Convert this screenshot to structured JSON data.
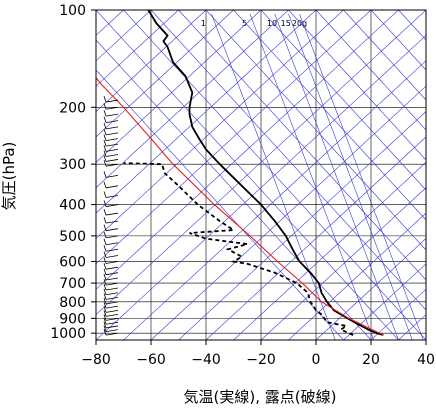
{
  "chart_data": {
    "type": "line",
    "title": "",
    "xlabel": "気温(実線), 露点(破線)",
    "ylabel": "気圧(hPa)",
    "x_axis": {
      "range": [
        -80,
        40
      ],
      "ticks": [
        -80,
        -60,
        -40,
        -20,
        0,
        20,
        40
      ],
      "tick_labels": [
        "−80",
        "−60",
        "−40",
        "−20",
        "0",
        "20",
        "40"
      ]
    },
    "y_axis": {
      "scale": "log",
      "inverted": true,
      "range": [
        1050,
        100
      ],
      "ticks": [
        100,
        200,
        300,
        400,
        500,
        600,
        700,
        800,
        900,
        1000
      ],
      "tick_labels": [
        "100",
        "200",
        "300",
        "400",
        "500",
        "600",
        "700",
        "800",
        "900",
        "1000"
      ]
    },
    "grid": true,
    "mixing_ratio_labels": [
      "1",
      "5",
      "10",
      "15",
      "20g"
    ],
    "series": [
      {
        "style": "solid",
        "color": "#000000",
        "points": [
          {
            "p": 1013,
            "t": 24.5
          },
          {
            "p": 1000,
            "t": 22
          },
          {
            "p": 975,
            "t": 19
          },
          {
            "p": 950,
            "t": 16.5
          },
          {
            "p": 925,
            "t": 14
          },
          {
            "p": 900,
            "t": 11.5
          },
          {
            "p": 875,
            "t": 9
          },
          {
            "p": 850,
            "t": 6.5
          },
          {
            "p": 800,
            "t": 4
          },
          {
            "p": 750,
            "t": 2
          },
          {
            "p": 700,
            "t": 1
          },
          {
            "p": 650,
            "t": -2
          },
          {
            "p": 600,
            "t": -6
          },
          {
            "p": 550,
            "t": -8.5
          },
          {
            "p": 500,
            "t": -11
          },
          {
            "p": 450,
            "t": -15
          },
          {
            "p": 400,
            "t": -20
          },
          {
            "p": 350,
            "t": -27
          },
          {
            "p": 300,
            "t": -35
          },
          {
            "p": 270,
            "t": -40
          },
          {
            "p": 250,
            "t": -42.5
          },
          {
            "p": 230,
            "t": -45
          },
          {
            "p": 210,
            "t": -46
          },
          {
            "p": 200,
            "t": -46
          },
          {
            "p": 180,
            "t": -45
          },
          {
            "p": 160,
            "t": -47.5
          },
          {
            "p": 145,
            "t": -52
          },
          {
            "p": 130,
            "t": -54
          },
          {
            "p": 125,
            "t": -55.5
          },
          {
            "p": 120,
            "t": -54
          },
          {
            "p": 110,
            "t": -58
          },
          {
            "p": 100,
            "t": -61
          }
        ]
      },
      {
        "style": "dashed",
        "color": "#000000",
        "points": [
          {
            "p": 1013,
            "t": 13.5
          },
          {
            "p": 1000,
            "t": 12
          },
          {
            "p": 975,
            "t": 9
          },
          {
            "p": 950,
            "t": 11
          },
          {
            "p": 925,
            "t": 4
          },
          {
            "p": 900,
            "t": 3
          },
          {
            "p": 875,
            "t": 2
          },
          {
            "p": 850,
            "t": 0
          },
          {
            "p": 800,
            "t": -2
          },
          {
            "p": 750,
            "t": -3
          },
          {
            "p": 700,
            "t": -7
          },
          {
            "p": 650,
            "t": -15
          },
          {
            "p": 610,
            "t": -25
          },
          {
            "p": 600,
            "t": -30
          },
          {
            "p": 580,
            "t": -27
          },
          {
            "p": 550,
            "t": -32
          },
          {
            "p": 530,
            "t": -25
          },
          {
            "p": 510,
            "t": -40
          },
          {
            "p": 490,
            "t": -46
          },
          {
            "p": 480,
            "t": -30
          },
          {
            "p": 450,
            "t": -35
          },
          {
            "p": 400,
            "t": -43
          },
          {
            "p": 350,
            "t": -50
          },
          {
            "p": 320,
            "t": -55
          },
          {
            "p": 300,
            "t": -56
          },
          {
            "p": 299,
            "t": -62
          },
          {
            "p": 298,
            "t": -70
          }
        ]
      },
      {
        "style": "solid",
        "color": "#e02020",
        "points": [
          {
            "p": 1013,
            "t": 24.5
          },
          {
            "p": 900,
            "t": 12
          },
          {
            "p": 800,
            "t": 2
          },
          {
            "p": 700,
            "t": -5
          },
          {
            "p": 600,
            "t": -14
          },
          {
            "p": 500,
            "t": -24
          },
          {
            "p": 400,
            "t": -37
          },
          {
            "p": 300,
            "t": -52
          },
          {
            "p": 250,
            "t": -60
          },
          {
            "p": 200,
            "t": -70
          },
          {
            "p": 170,
            "t": -78
          },
          {
            "p": 162,
            "t": -80
          }
        ]
      }
    ],
    "wind_barb_pressures": [
      1000,
      975,
      950,
      925,
      900,
      875,
      850,
      825,
      800,
      775,
      750,
      725,
      700,
      675,
      650,
      625,
      600,
      575,
      550,
      525,
      500,
      475,
      450,
      425,
      400,
      375,
      350,
      325,
      300,
      290,
      280,
      270,
      260,
      250,
      240,
      230,
      220,
      210,
      200,
      190
    ]
  },
  "colors": {
    "grid": "#000000",
    "isotherm": "#3a3ad8",
    "mixing_ratio": "#3a3ad8",
    "background": "#ffffff"
  }
}
